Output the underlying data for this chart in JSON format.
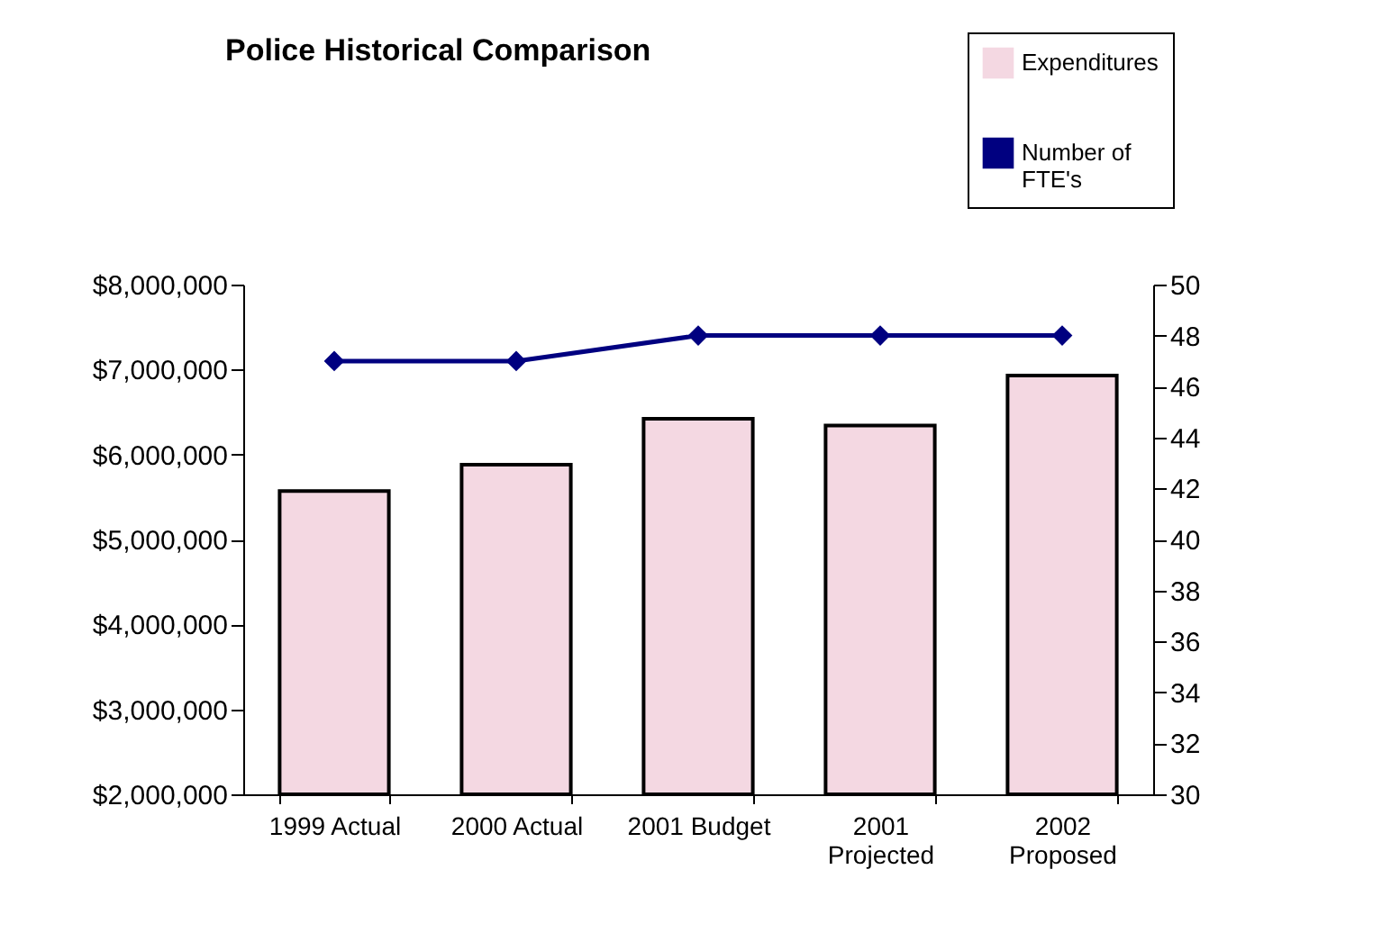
{
  "chart_data": {
    "type": "bar",
    "title": "Police Historical Comparison",
    "categories": [
      "1999 Actual",
      "2000 Actual",
      "2001 Budget",
      "2001 Projected",
      "2002 Proposed"
    ],
    "series": [
      {
        "name": "Expenditures",
        "color": "#f4d8e2",
        "values": [
          5570000,
          5880000,
          6420000,
          6340000,
          6930000
        ]
      },
      {
        "name": "Number of FTE's",
        "type": "line",
        "axis": "y2",
        "color": "#000080",
        "values": [
          47,
          47,
          48,
          48,
          48
        ]
      }
    ],
    "ylim": [
      2000000,
      8000000
    ],
    "yticks": [
      {
        "value": 2000000,
        "label": "$2,000,000"
      },
      {
        "value": 3000000,
        "label": "$3,000,000"
      },
      {
        "value": 4000000,
        "label": "$4,000,000"
      },
      {
        "value": 5000000,
        "label": "$5,000,000"
      },
      {
        "value": 6000000,
        "label": "$6,000,000"
      },
      {
        "value": 7000000,
        "label": "$7,000,000"
      },
      {
        "value": 8000000,
        "label": "$8,000,000"
      }
    ],
    "y2lim": [
      30,
      50
    ],
    "y2ticks": [
      30,
      32,
      34,
      36,
      38,
      40,
      42,
      44,
      46,
      48,
      50
    ],
    "marker": "diamond",
    "legend": "top right",
    "grid": false
  }
}
